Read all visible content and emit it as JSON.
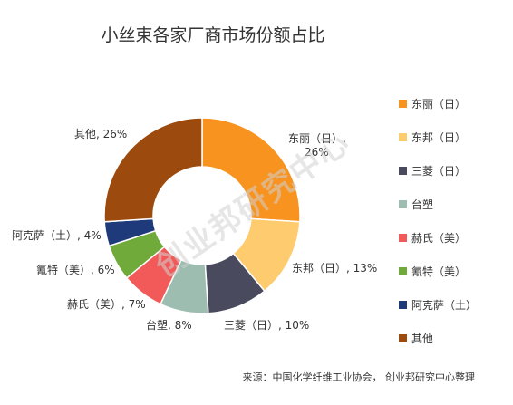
{
  "chart_data": {
    "type": "pie",
    "title": "小丝束各家厂商市场份额占比",
    "categories": [
      "东丽（日）",
      "东邦（日）",
      "三菱（日）",
      "台塑",
      "赫氏（美）",
      "氰特（美）",
      "阿克萨（土）",
      "其他"
    ],
    "values": [
      26,
      13,
      10,
      8,
      7,
      6,
      4,
      26
    ],
    "colors": [
      "#F7931E",
      "#FECB6E",
      "#4A4A5E",
      "#9DBDB0",
      "#F25A5A",
      "#6FAA3A",
      "#1F3A7A",
      "#9C4A0E"
    ],
    "data_labels": [
      "东丽（日）,\n26%",
      "东邦（日）, 13%",
      "三菱（日）, 10%",
      "台塑, 8%",
      "赫氏（美）, 7%",
      "氰特（美）, 6%",
      "阿克萨（土）, 4%",
      "其他, 26%"
    ],
    "legend_labels": [
      "东丽（日）",
      "东邦（日）",
      "三菱（日）",
      "台塑",
      "赫氏（美）",
      "氰特（美）",
      "阿克萨（土）",
      "其他"
    ],
    "legend": "right"
  },
  "source": "来源：中国化学纤维工业协会， 创业邦研究中心整理",
  "watermark": "创业邦研究中心"
}
